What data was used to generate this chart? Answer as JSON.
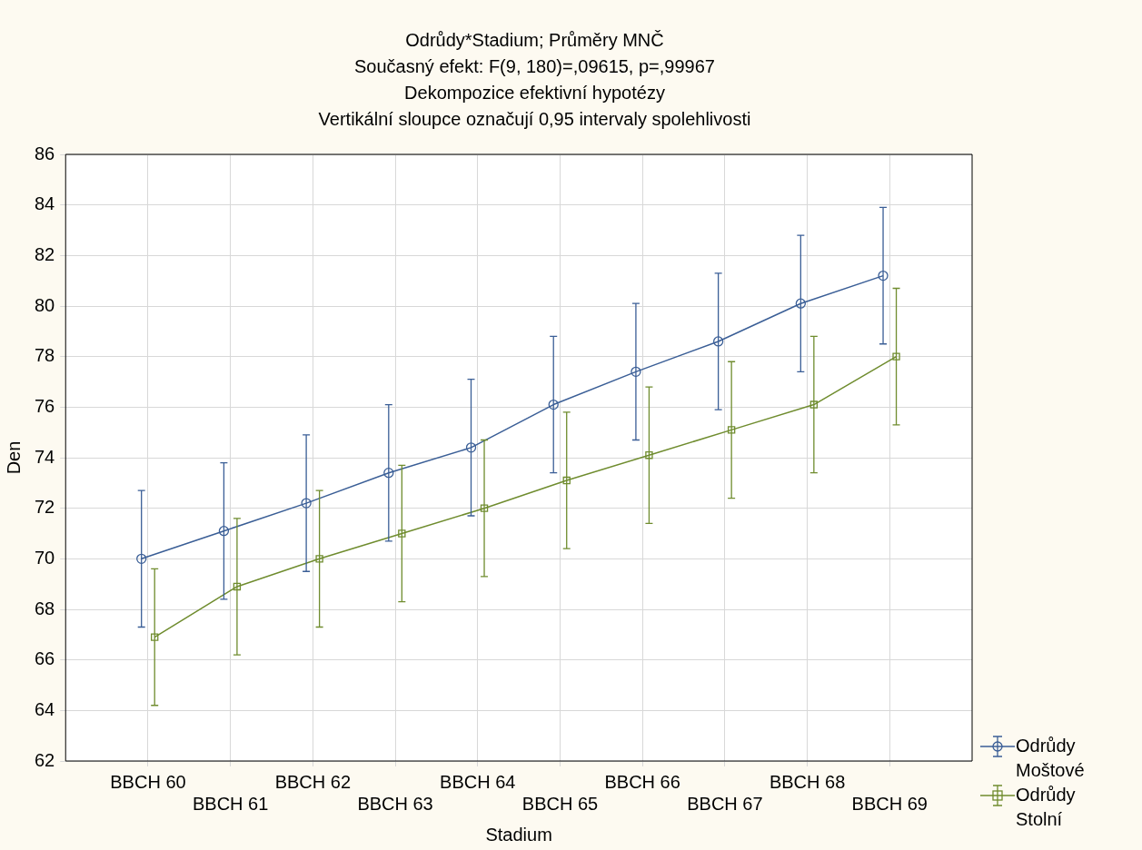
{
  "chart_data": {
    "type": "line",
    "title": "Odrůdy*Stadium; Průměry MNČ",
    "subtitle": "Současný efekt: F(9, 180)=,09615, p=,99967\nDekompozice efektivní hypotézy\nVertikální sloupce označují 0,95 intervaly spolehlivosti",
    "xlabel": "Stadium",
    "ylabel": "Den",
    "categories": [
      "BBCH 60",
      "BBCH 61",
      "BBCH 62",
      "BBCH 63",
      "BBCH 64",
      "BBCH 65",
      "BBCH 66",
      "BBCH 67",
      "BBCH 68",
      "BBCH 69"
    ],
    "series": [
      {
        "name": "Odrůdy Moštové",
        "color": "#3a5e96",
        "marker": "circle",
        "values": [
          70.0,
          71.1,
          72.2,
          73.4,
          74.4,
          76.1,
          77.4,
          78.6,
          80.1,
          81.2
        ],
        "errors": [
          2.7,
          2.7,
          2.7,
          2.7,
          2.7,
          2.7,
          2.7,
          2.7,
          2.7,
          2.7
        ]
      },
      {
        "name": "Odrůdy Stolní",
        "color": "#6f8c2e",
        "marker": "square",
        "values": [
          66.9,
          68.9,
          70.0,
          71.0,
          72.0,
          73.1,
          74.1,
          75.1,
          76.1,
          78.0
        ],
        "errors": [
          2.7,
          2.7,
          2.7,
          2.7,
          2.7,
          2.7,
          2.7,
          2.7,
          2.7,
          2.7
        ]
      }
    ],
    "ylim": [
      62,
      86
    ],
    "yticks": [
      62,
      64,
      66,
      68,
      70,
      72,
      74,
      76,
      78,
      80,
      82,
      84,
      86
    ],
    "grid": true,
    "legend": "bottom right",
    "line_style": "solid"
  }
}
